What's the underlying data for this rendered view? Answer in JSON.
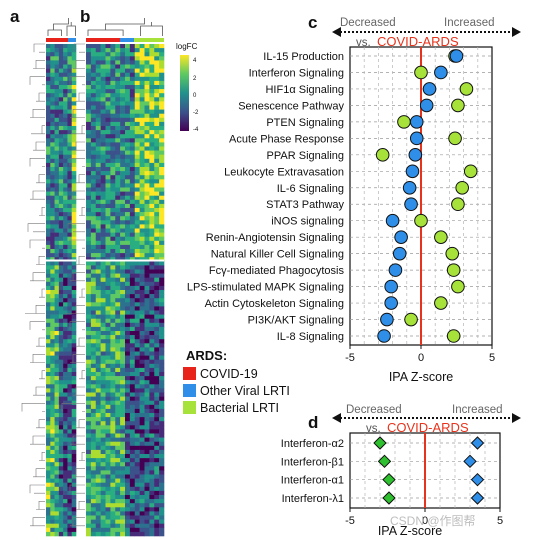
{
  "panels": {
    "a": "a",
    "b": "b",
    "c": "c",
    "d": "d"
  },
  "colorbar": {
    "title": "logFC",
    "ticks": [
      "4",
      "2",
      "0",
      "-2",
      "-4"
    ]
  },
  "legend": {
    "title": "ARDS:",
    "items": [
      {
        "label": "COVID-19",
        "color": "#e8231c"
      },
      {
        "label": "Other Viral LRTI",
        "color": "#2e8ee8"
      },
      {
        "label": "Bacterial LRTI",
        "color": "#a6e23a"
      }
    ]
  },
  "header_c": {
    "decreased": "Decreased",
    "increased": "Increased",
    "vs": "vs.",
    "ref": "COVID-ARDS"
  },
  "header_d": {
    "decreased": "Decreased",
    "increased": "Increased",
    "vs": "vs.",
    "ref": "COVID-ARDS"
  },
  "watermark": "CSDN @作图帮",
  "chart_data": [
    {
      "type": "scatter",
      "panel": "c",
      "xlabel": "IPA Z-score",
      "xlim": [
        -5,
        5
      ],
      "xticks": [
        "-5",
        "0",
        "5"
      ],
      "categories": [
        "IL-15 Production",
        "Interferon Signaling",
        "HIF1α Signaling",
        "Senescence Pathway",
        "PTEN Signaling",
        "Acute Phase Response",
        "PPAR Signaling",
        "Leukocyte Extravasation",
        "IL-6 Signaling",
        "STAT3 Pathway",
        "iNOS signaling",
        "Renin-Angiotensin Signaling",
        "Natural Killer Cell Signaling",
        "Fcγ-mediated Phagocytosis",
        "LPS-stimulated MAPK Signaling",
        "Actin Cytoskeleton Signaling",
        "PI3K/AKT Signaling",
        "IL-8 Signaling"
      ],
      "series": [
        {
          "name": "Other Viral LRTI",
          "color": "#2e8ee8",
          "values": [
            2.5,
            1.4,
            0.6,
            0.4,
            -0.3,
            -0.3,
            -0.4,
            -0.6,
            -0.8,
            -0.7,
            -2.0,
            -1.4,
            -1.5,
            -1.8,
            -2.1,
            -2.1,
            -2.4,
            -2.6
          ]
        },
        {
          "name": "Bacterial LRTI",
          "color": "#a6e23a",
          "values": [
            2.4,
            0.0,
            3.2,
            2.6,
            -1.2,
            2.4,
            -2.7,
            3.5,
            2.9,
            2.6,
            0.0,
            1.4,
            2.2,
            2.3,
            2.6,
            1.4,
            -0.7,
            2.3
          ]
        }
      ]
    },
    {
      "type": "scatter",
      "panel": "d",
      "xlabel": "IPA Z-score",
      "xlim": [
        -5,
        5
      ],
      "xticks": [
        "-5",
        "0",
        "5"
      ],
      "categories": [
        "Interferon-α2",
        "Interferon-β1",
        "Interferon-α1",
        "Interferon-λ1"
      ],
      "series": [
        {
          "name": "Other Viral LRTI",
          "color": "#2e8ee8",
          "values": [
            3.5,
            3.0,
            3.5,
            3.5
          ]
        },
        {
          "name": "Bacterial LRTI",
          "color": "#2ec02e",
          "values": [
            -3.0,
            -2.7,
            -2.4,
            -2.4
          ]
        }
      ]
    }
  ]
}
